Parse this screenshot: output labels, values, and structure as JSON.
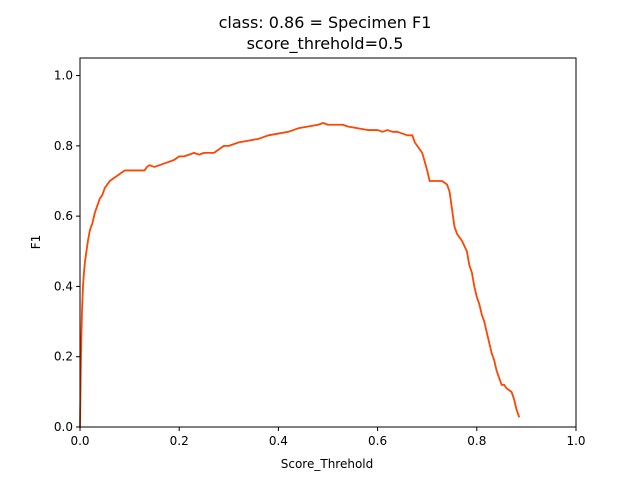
{
  "chart_data": {
    "type": "line",
    "title": "class: 0.86 = Specimen F1",
    "subtitle": "score_threhold=0.5",
    "xlabel": "Score_Threhold",
    "ylabel": "F1",
    "xlim": [
      0.0,
      1.0
    ],
    "ylim": [
      0.0,
      1.05
    ],
    "xticks": [
      "0.0",
      "0.2",
      "0.4",
      "0.6",
      "0.8",
      "1.0"
    ],
    "yticks": [
      "0.0",
      "0.2",
      "0.4",
      "0.6",
      "0.8",
      "1.0"
    ],
    "grid": false,
    "line_color": "#ff4500",
    "series": [
      {
        "x": [
          0.0,
          0.002,
          0.004,
          0.006,
          0.008,
          0.01,
          0.013,
          0.016,
          0.02,
          0.025,
          0.03,
          0.035,
          0.04,
          0.045,
          0.05,
          0.055,
          0.06,
          0.07,
          0.08,
          0.09,
          0.1,
          0.11,
          0.12,
          0.13,
          0.135,
          0.14,
          0.15,
          0.16,
          0.17,
          0.18,
          0.19,
          0.2,
          0.21,
          0.22,
          0.23,
          0.24,
          0.25,
          0.26,
          0.27,
          0.28,
          0.29,
          0.3,
          0.32,
          0.34,
          0.36,
          0.38,
          0.4,
          0.42,
          0.44,
          0.46,
          0.48,
          0.49,
          0.5,
          0.52,
          0.53,
          0.54,
          0.56,
          0.58,
          0.6,
          0.61,
          0.62,
          0.63,
          0.64,
          0.65,
          0.66,
          0.67,
          0.675,
          0.68,
          0.69,
          0.7,
          0.705,
          0.71,
          0.715,
          0.72,
          0.73,
          0.74,
          0.745,
          0.75,
          0.755,
          0.76,
          0.765,
          0.77,
          0.78,
          0.785,
          0.79,
          0.795,
          0.8,
          0.805,
          0.81,
          0.815,
          0.82,
          0.825,
          0.83,
          0.835,
          0.84,
          0.845,
          0.85,
          0.855,
          0.86,
          0.87,
          0.875,
          0.88,
          0.885
        ],
        "y": [
          0.0,
          0.2,
          0.33,
          0.4,
          0.44,
          0.47,
          0.5,
          0.53,
          0.56,
          0.58,
          0.61,
          0.63,
          0.65,
          0.66,
          0.68,
          0.69,
          0.7,
          0.71,
          0.72,
          0.73,
          0.73,
          0.73,
          0.73,
          0.73,
          0.74,
          0.745,
          0.74,
          0.745,
          0.75,
          0.755,
          0.76,
          0.77,
          0.77,
          0.775,
          0.78,
          0.775,
          0.78,
          0.78,
          0.78,
          0.79,
          0.8,
          0.8,
          0.81,
          0.815,
          0.82,
          0.83,
          0.835,
          0.84,
          0.85,
          0.855,
          0.86,
          0.865,
          0.86,
          0.86,
          0.86,
          0.855,
          0.85,
          0.845,
          0.845,
          0.84,
          0.845,
          0.84,
          0.84,
          0.835,
          0.83,
          0.83,
          0.81,
          0.8,
          0.78,
          0.73,
          0.7,
          0.7,
          0.7,
          0.7,
          0.7,
          0.69,
          0.67,
          0.62,
          0.57,
          0.55,
          0.54,
          0.53,
          0.5,
          0.46,
          0.44,
          0.4,
          0.37,
          0.35,
          0.32,
          0.3,
          0.27,
          0.24,
          0.21,
          0.19,
          0.16,
          0.14,
          0.12,
          0.12,
          0.11,
          0.1,
          0.08,
          0.05,
          0.03
        ]
      }
    ]
  }
}
